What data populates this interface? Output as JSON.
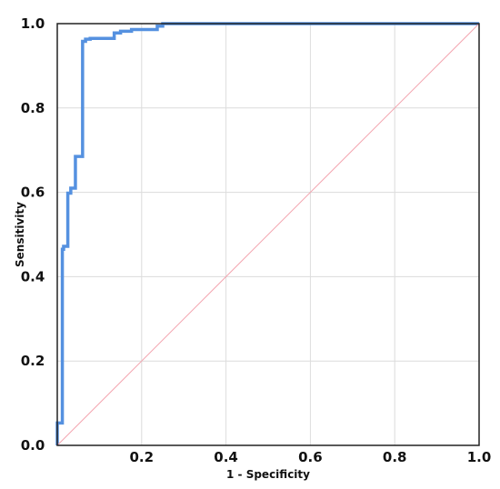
{
  "chart_data": {
    "type": "line",
    "title": "",
    "xlabel": "1 - Specificity",
    "ylabel": "Sensitivity",
    "xlim": [
      0.0,
      1.0
    ],
    "ylim": [
      0.0,
      1.0
    ],
    "grid": true,
    "legend": "none",
    "x_ticks": [
      "0.2",
      "0.4",
      "0.6",
      "0.8",
      "1.0"
    ],
    "x_tick_values": [
      0.2,
      0.4,
      0.6,
      0.8,
      1.0
    ],
    "y_ticks": [
      "0.0",
      "0.2",
      "0.4",
      "0.6",
      "0.8",
      "1.0"
    ],
    "y_tick_values": [
      0.0,
      0.2,
      0.4,
      0.6,
      0.8,
      1.0
    ],
    "series": [
      {
        "color": "#5591e0",
        "x": [
          0.0,
          0.0,
          0.012,
          0.012,
          0.015,
          0.015,
          0.025,
          0.025,
          0.032,
          0.032,
          0.043,
          0.043,
          0.06,
          0.06,
          0.067,
          0.067,
          0.078,
          0.078,
          0.135,
          0.135,
          0.15,
          0.15,
          0.176,
          0.176,
          0.237,
          0.237,
          0.25,
          0.25,
          1.0
        ],
        "y": [
          0.0,
          0.053,
          0.053,
          0.465,
          0.465,
          0.472,
          0.472,
          0.598,
          0.598,
          0.61,
          0.61,
          0.685,
          0.685,
          0.958,
          0.958,
          0.963,
          0.963,
          0.965,
          0.965,
          0.978,
          0.978,
          0.982,
          0.982,
          0.986,
          0.986,
          0.994,
          0.994,
          1.0,
          1.0
        ]
      },
      {
        "color": "#f4a6b0",
        "x": [
          0.0,
          1.0
        ],
        "y": [
          0.0,
          1.0
        ]
      }
    ]
  },
  "colors": {
    "roc_line": "#5591e0",
    "reference_line": "#f4a6b0",
    "grid": "#dcdcdc",
    "frame": "#222222"
  }
}
